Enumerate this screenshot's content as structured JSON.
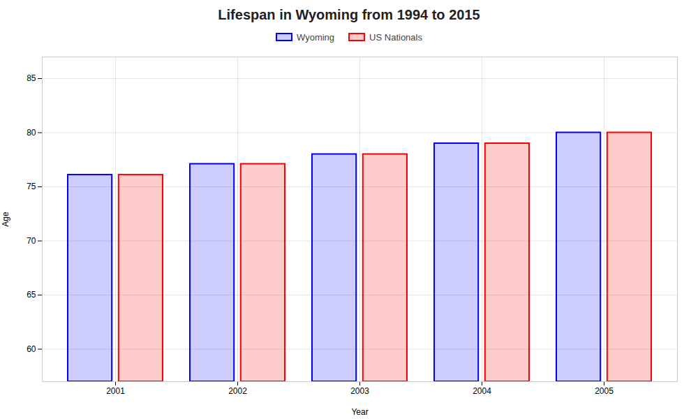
{
  "chart_data": {
    "type": "bar",
    "title": "Lifespan in Wyoming from 1994 to 2015",
    "xlabel": "Year",
    "ylabel": "Age",
    "categories": [
      "2001",
      "2002",
      "2003",
      "2004",
      "2005"
    ],
    "series": [
      {
        "name": "Wyoming",
        "color": "#0000ff",
        "values": [
          76.1,
          77.1,
          78.0,
          79.0,
          80.0
        ]
      },
      {
        "name": "US Nationals",
        "color": "#ff0000",
        "values": [
          76.1,
          77.1,
          78.0,
          79.0,
          80.0
        ]
      }
    ],
    "ylim": [
      57,
      87
    ],
    "yticks": [
      60,
      65,
      70,
      75,
      80,
      85
    ],
    "grid": true,
    "legend": "top"
  }
}
